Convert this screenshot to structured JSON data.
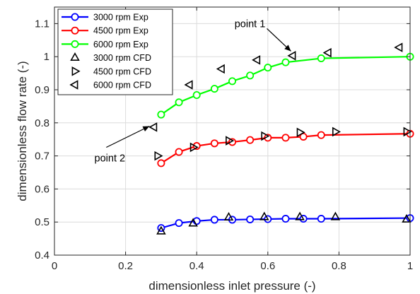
{
  "chart_data": {
    "type": "line",
    "title": "",
    "xlabel": "dimensionless inlet pressure (-)",
    "ylabel": "dimensionless flow rate (-)",
    "xlim": [
      0,
      1.0
    ],
    "ylim": [
      0.4,
      1.15
    ],
    "x_ticks": [
      "0",
      "0.2",
      "0.4",
      "0.6",
      "0.8",
      "1"
    ],
    "y_ticks": [
      "0.4",
      "0.5",
      "0.6",
      "0.7",
      "0.8",
      "0.9",
      "1",
      "1.1"
    ],
    "grid": true,
    "legend_position": "top-left",
    "series": [
      {
        "name": "3000 rpm Exp",
        "kind": "exp",
        "color": "#0000ff",
        "marker": "circle",
        "x": [
          0.3,
          0.35,
          0.4,
          0.45,
          0.5,
          0.55,
          0.6,
          0.65,
          0.7,
          0.75,
          1.0
        ],
        "y": [
          0.482,
          0.497,
          0.503,
          0.507,
          0.507,
          0.508,
          0.509,
          0.51,
          0.51,
          0.51,
          0.512
        ]
      },
      {
        "name": "4500 rpm Exp",
        "kind": "exp",
        "color": "#ff0000",
        "marker": "circle",
        "x": [
          0.3,
          0.35,
          0.4,
          0.45,
          0.5,
          0.55,
          0.6,
          0.65,
          0.7,
          0.75,
          1.0
        ],
        "y": [
          0.678,
          0.712,
          0.73,
          0.738,
          0.742,
          0.748,
          0.755,
          0.755,
          0.758,
          0.763,
          0.767
        ]
      },
      {
        "name": "6000 rpm Exp",
        "kind": "exp",
        "color": "#00ff00",
        "marker": "circle",
        "x": [
          0.3,
          0.35,
          0.4,
          0.45,
          0.5,
          0.55,
          0.6,
          0.65,
          0.75,
          1.0
        ],
        "y": [
          0.825,
          0.862,
          0.884,
          0.903,
          0.926,
          0.943,
          0.967,
          0.983,
          0.995,
          1.0
        ]
      },
      {
        "name": "3000 rpm CFD",
        "kind": "cfd",
        "color": "#000000",
        "marker": "triangle-up",
        "x": [
          0.3,
          0.39,
          0.49,
          0.59,
          0.69,
          0.79,
          0.99
        ],
        "y": [
          0.472,
          0.496,
          0.514,
          0.515,
          0.515,
          0.515,
          0.508
        ]
      },
      {
        "name": "4500 rpm CFD",
        "kind": "cfd",
        "color": "#000000",
        "marker": "triangle-right",
        "x": [
          0.29,
          0.39,
          0.49,
          0.59,
          0.69,
          0.79,
          0.99
        ],
        "y": [
          0.7,
          0.726,
          0.746,
          0.76,
          0.771,
          0.773,
          0.773
        ]
      },
      {
        "name": "6000 rpm CFD",
        "kind": "cfd",
        "color": "#000000",
        "marker": "triangle-left",
        "x": [
          0.28,
          0.38,
          0.47,
          0.57,
          0.67,
          0.77,
          0.97
        ],
        "y": [
          0.787,
          0.915,
          0.963,
          0.99,
          1.003,
          1.012,
          1.028
        ]
      }
    ],
    "annotations": [
      {
        "text": "point 1",
        "target_x": 0.665,
        "target_y": 1.008
      },
      {
        "text": "point 2",
        "target_x": 0.275,
        "target_y": 0.79
      }
    ]
  }
}
